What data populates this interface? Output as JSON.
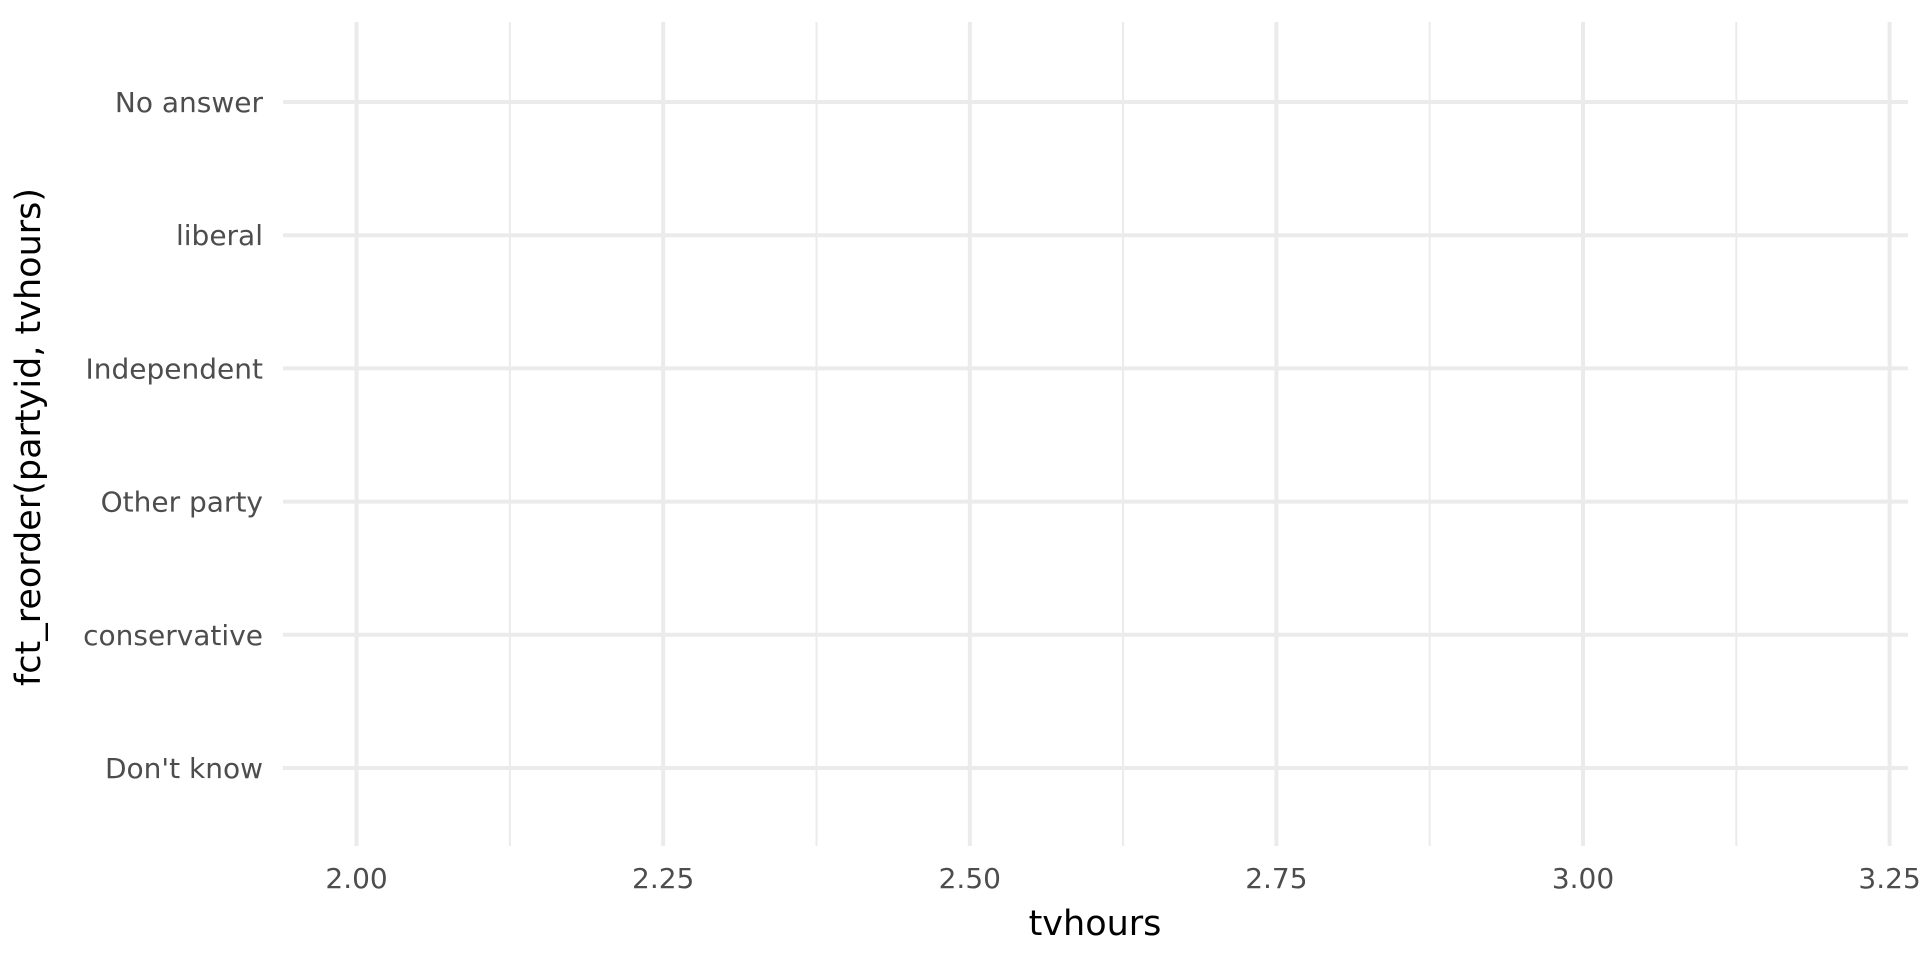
{
  "chart_data": {
    "type": "scatter",
    "title": "",
    "xlabel": "tvhours",
    "ylabel": "fct_reorder(partyid, tvhours)",
    "categories": [
      "No answer",
      "liberal",
      "Independent",
      "Other party",
      "conservative",
      "Don't know"
    ],
    "x_ticks": [
      "2.00",
      "2.25",
      "2.50",
      "2.75",
      "3.00",
      "3.25"
    ],
    "x_tick_values": [
      2.0,
      2.25,
      2.5,
      2.75,
      3.0,
      3.25
    ],
    "xlim": [
      1.94,
      3.265
    ],
    "points": [],
    "grid": true,
    "colors": {
      "grid": "#ebebeb",
      "tick_text": "#4d4d4d",
      "title_text": "#000000",
      "background": "#ffffff"
    }
  }
}
